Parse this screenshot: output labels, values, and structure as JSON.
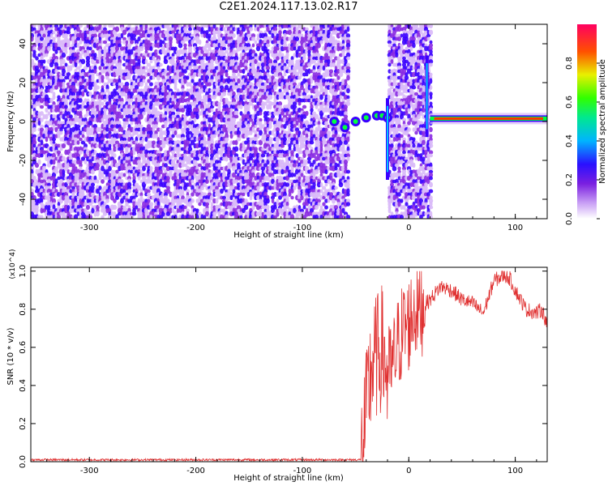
{
  "title": "C2E1.2024.117.13.02.R17",
  "colors": {
    "spectrogram_palette": [
      "#ffffff",
      "#d8b8f8",
      "#8a2be2",
      "#3a00ff",
      "#00c8ff",
      "#00ff40",
      "#ffee00",
      "#ff3000",
      "#ff0060"
    ],
    "snr_line": "#e03030"
  },
  "chart_data": [
    {
      "type": "heatmap",
      "xlabel": "Height of straight line (km)",
      "ylabel": "Frequency (Hz)",
      "xlim": [
        -355,
        130
      ],
      "ylim": [
        -50,
        50
      ],
      "xticks": [
        -300,
        -200,
        -100,
        0,
        100
      ],
      "xtick_labels": [
        "-300",
        "-200",
        "-100",
        "0",
        "100"
      ],
      "yticks": [
        -40,
        -20,
        0,
        20,
        40
      ],
      "ytick_labels": [
        "-40",
        "-20",
        "0",
        "20",
        "40"
      ],
      "colorbar": {
        "label": "Normalized spectral amplitude",
        "range": [
          0,
          1
        ],
        "ticks": [
          0.0,
          0.2,
          0.4,
          0.6,
          0.8
        ],
        "tick_labels": [
          "0.0",
          "0.2",
          "0.4",
          "0.6",
          "0.8"
        ]
      },
      "regions": [
        {
          "x_range": [
            -355,
            -58
          ],
          "description": "noise"
        },
        {
          "x_range": [
            -58,
            -20
          ],
          "description": "gap / weak signal"
        },
        {
          "x_range": [
            -20,
            20
          ],
          "description": "noise"
        },
        {
          "x_range": [
            20,
            130
          ],
          "description": "carrier signal"
        }
      ],
      "signal_track": {
        "x": [
          -70,
          -60,
          -50,
          -40,
          -30,
          -25,
          -20,
          20,
          40,
          60,
          80,
          100,
          120,
          130
        ],
        "frequency_hz": [
          0,
          -3,
          0,
          2,
          3,
          3,
          2,
          1.5,
          1.5,
          1.5,
          2,
          1.5,
          1.5,
          2
        ]
      }
    },
    {
      "type": "line",
      "xlabel": "Height of straight line (km)",
      "ylabel": "SNR (10 * v/v)",
      "y_multiplier": "(x10^4)",
      "xlim": [
        -355,
        130
      ],
      "ylim": [
        0,
        1.02
      ],
      "xticks": [
        -300,
        -200,
        -100,
        0,
        100
      ],
      "xtick_labels": [
        "-300",
        "-200",
        "-100",
        "0",
        "100"
      ],
      "yticks": [
        0.0,
        0.2,
        0.4,
        0.6,
        0.8,
        1.0
      ],
      "ytick_labels": [
        "0.0",
        "0.2",
        "0.4",
        "0.6",
        "0.8",
        "1.0"
      ],
      "series": [
        {
          "x": [
            -355,
            -300,
            -200,
            -100,
            -45,
            -40,
            -35,
            -30,
            -25,
            -20,
            -15,
            -10,
            -5,
            0,
            5,
            10,
            20,
            30,
            40,
            50,
            60,
            70,
            80,
            90,
            95,
            100,
            110,
            120,
            125,
            130
          ],
          "values": [
            0.01,
            0.01,
            0.01,
            0.01,
            0.01,
            0.25,
            0.5,
            0.55,
            0.6,
            0.45,
            0.5,
            0.62,
            0.7,
            0.72,
            0.8,
            0.8,
            0.85,
            0.92,
            0.9,
            0.85,
            0.83,
            0.78,
            0.95,
            0.98,
            0.96,
            0.9,
            0.8,
            0.78,
            0.8,
            0.72
          ]
        }
      ]
    }
  ]
}
